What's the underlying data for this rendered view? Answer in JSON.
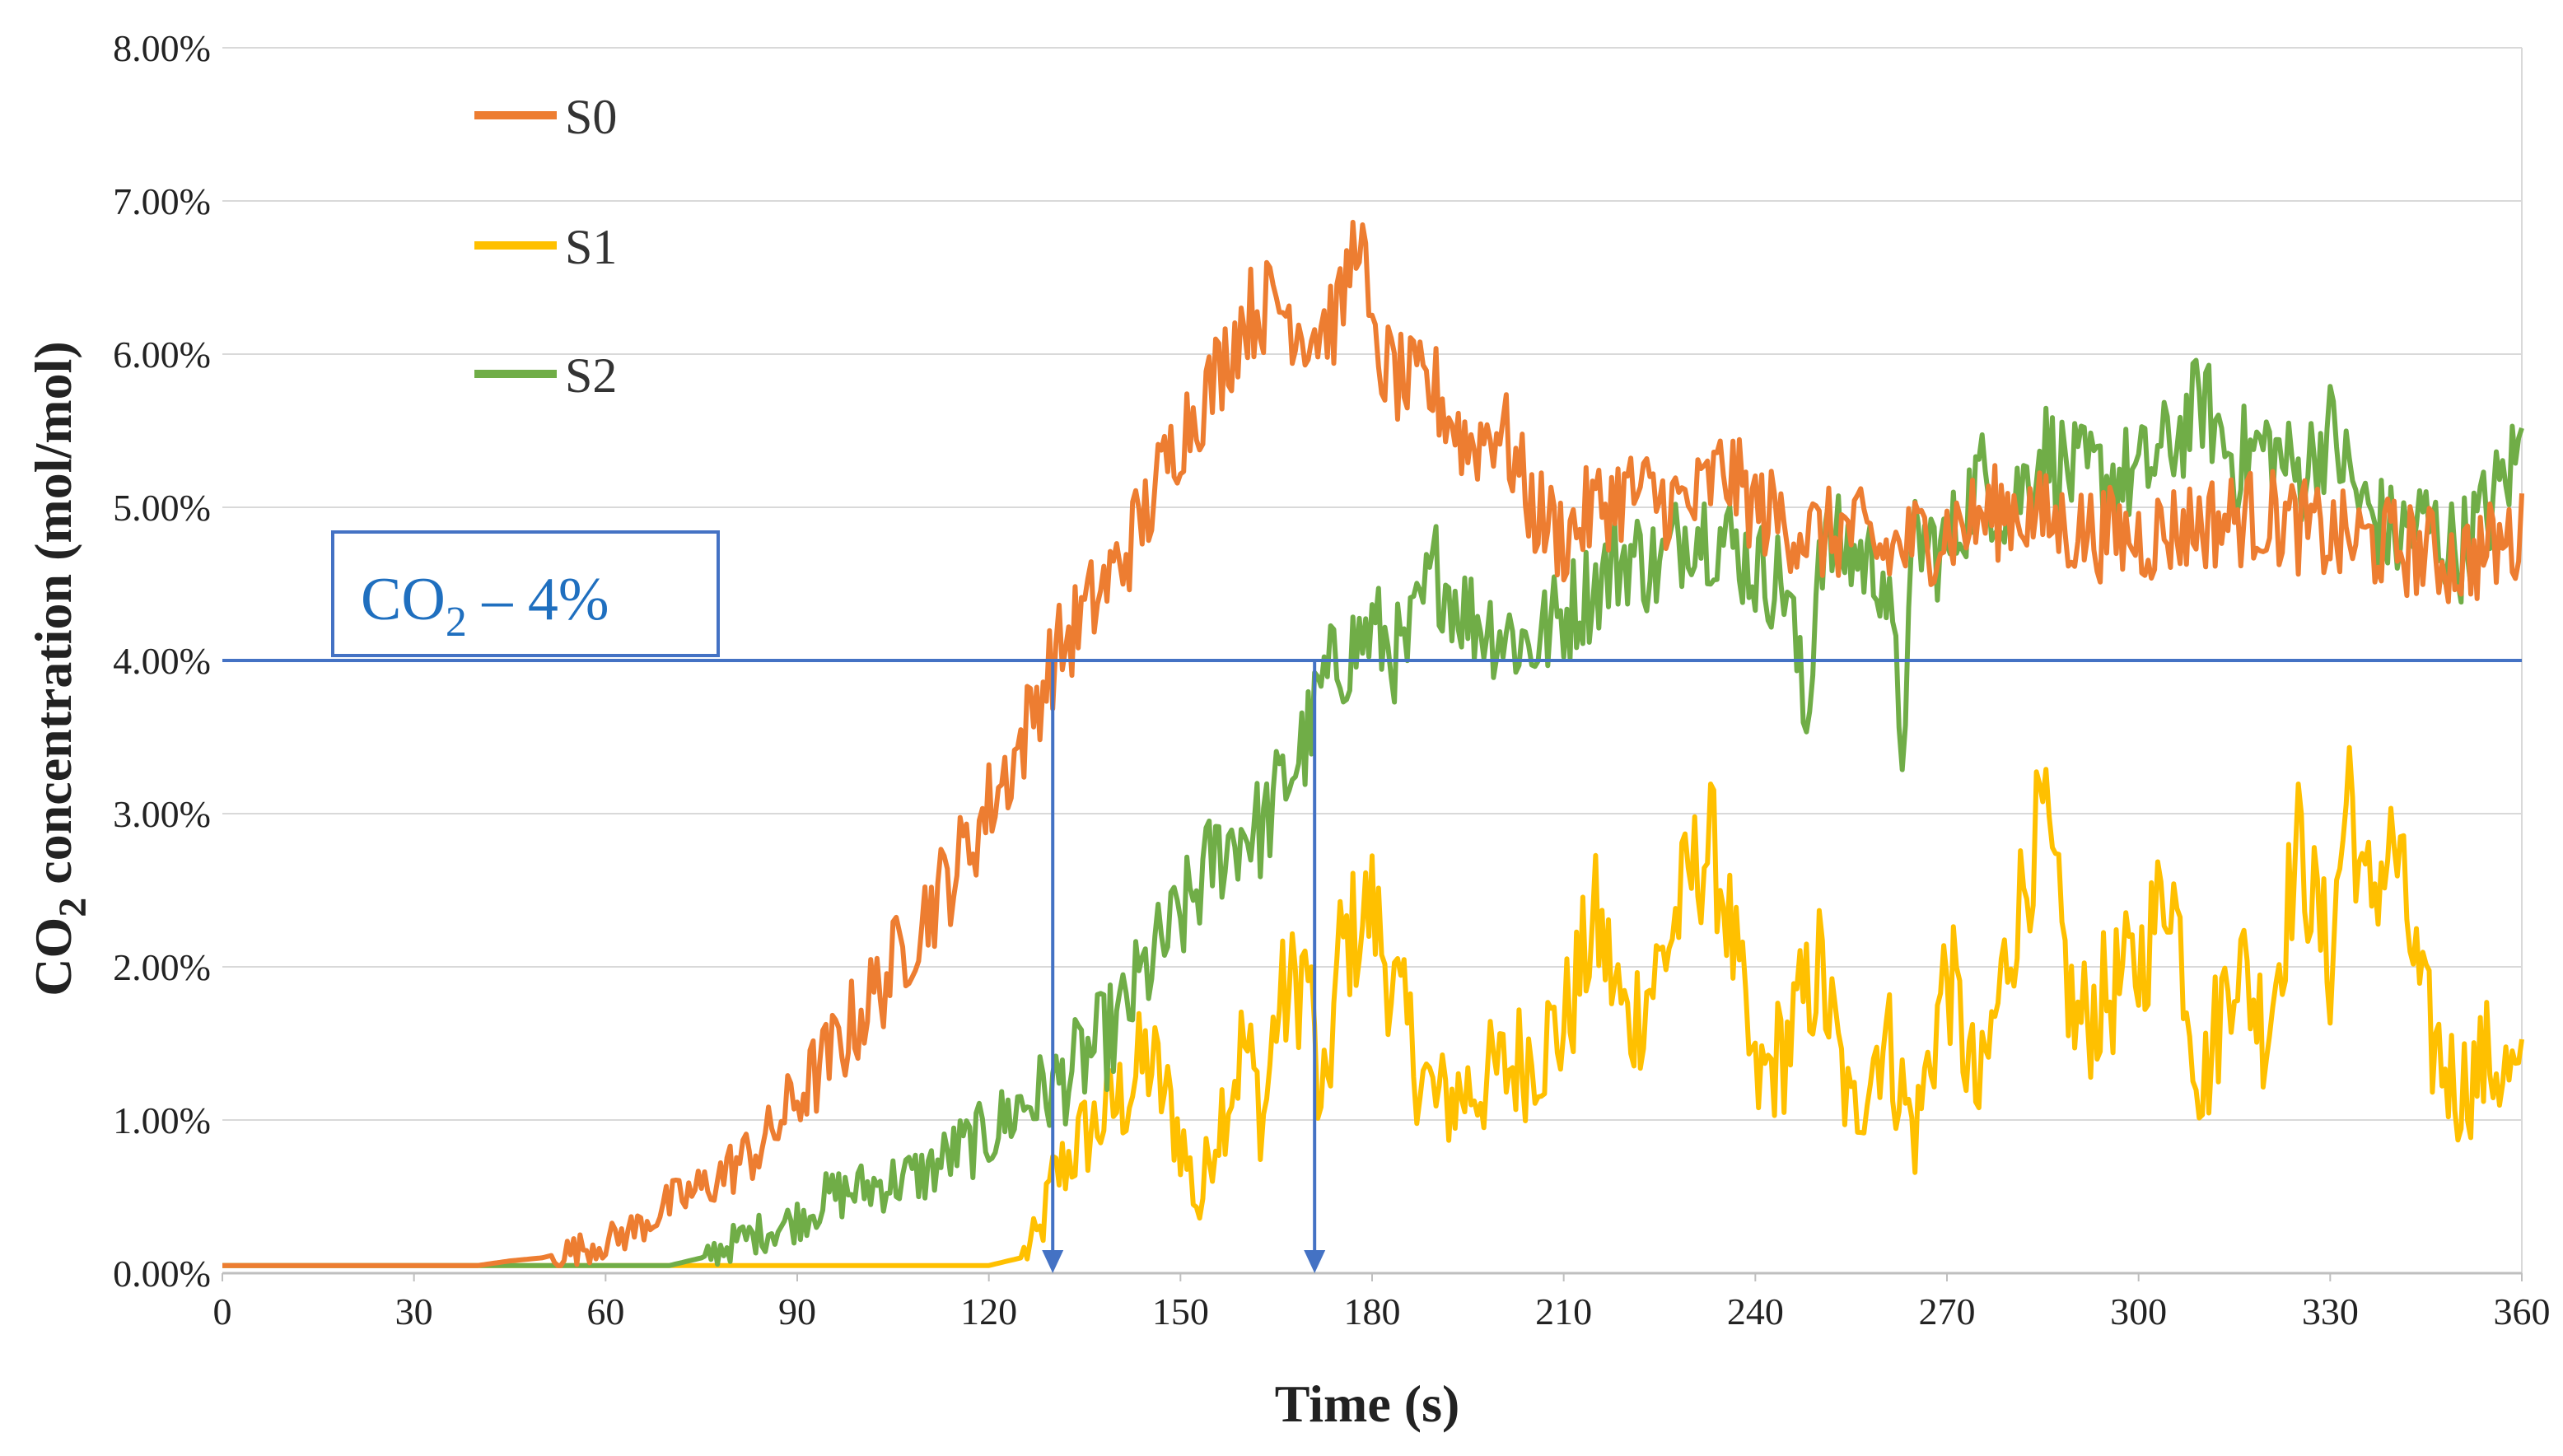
{
  "colors": {
    "S0": "#ed7d31",
    "S1": "#ffc000",
    "S2": "#70ad47",
    "threshold": "#4472c4",
    "annotation_text": "#1f6fbf",
    "grid": "#d9d9d9"
  },
  "chart_data": {
    "type": "line",
    "title": "",
    "xlabel": "Time (s)",
    "ylabel_main": "CO",
    "ylabel_sub": "2",
    "ylabel_rest": " concentration (mol/mol)",
    "xlim": [
      0,
      360
    ],
    "ylim": [
      0,
      0.08
    ],
    "x_ticks": [
      0,
      30,
      60,
      90,
      120,
      150,
      180,
      210,
      240,
      270,
      300,
      330,
      360
    ],
    "y_ticks": [
      0,
      0.01,
      0.02,
      0.03,
      0.04,
      0.05,
      0.06,
      0.07,
      0.08
    ],
    "y_tick_labels": [
      "0.00%",
      "1.00%",
      "2.00%",
      "3.00%",
      "4.00%",
      "5.00%",
      "6.00%",
      "7.00%",
      "8.00%"
    ],
    "grid": "horizontal",
    "legend_position": "top-left",
    "series": [
      {
        "name": "S0",
        "x": [
          0,
          30,
          40,
          45,
          50,
          55,
          60,
          65,
          70,
          75,
          80,
          85,
          90,
          95,
          100,
          105,
          110,
          115,
          120,
          125,
          128,
          130,
          135,
          140,
          145,
          150,
          155,
          160,
          165,
          170,
          175,
          178,
          180,
          185,
          190,
          195,
          200,
          205,
          210,
          215,
          220,
          225,
          230,
          235,
          240,
          245,
          250,
          255,
          260,
          270,
          280,
          290,
          300,
          310,
          320,
          330,
          340,
          350,
          360
        ],
        "y": [
          0.0005,
          0.0005,
          0.0005,
          0.0008,
          0.001,
          0.0015,
          0.002,
          0.003,
          0.0045,
          0.0055,
          0.007,
          0.0085,
          0.0115,
          0.014,
          0.017,
          0.02,
          0.0235,
          0.0265,
          0.0305,
          0.0345,
          0.038,
          0.04,
          0.043,
          0.046,
          0.05,
          0.055,
          0.058,
          0.0625,
          0.0635,
          0.0615,
          0.0625,
          0.069,
          0.06,
          0.058,
          0.0575,
          0.054,
          0.0555,
          0.05,
          0.048,
          0.05,
          0.051,
          0.0505,
          0.05,
          0.0525,
          0.05,
          0.049,
          0.048,
          0.0485,
          0.047,
          0.0485,
          0.05,
          0.0485,
          0.048,
          0.049,
          0.0495,
          0.048,
          0.0475,
          0.0465,
          0.048
        ]
      },
      {
        "name": "S1",
        "x": [
          0,
          120,
          125,
          128,
          130,
          135,
          140,
          145,
          150,
          153,
          155,
          160,
          163,
          165,
          170,
          172,
          175,
          180,
          185,
          190,
          200,
          210,
          215,
          220,
          225,
          230,
          233,
          235,
          240,
          245,
          250,
          255,
          260,
          265,
          270,
          275,
          280,
          285,
          290,
          300,
          305,
          310,
          315,
          320,
          325,
          330,
          333,
          335,
          340,
          345,
          350,
          355,
          360
        ],
        "y": [
          0.0005,
          0.0005,
          0.001,
          0.0025,
          0.006,
          0.009,
          0.011,
          0.014,
          0.009,
          0.004,
          0.009,
          0.015,
          0.01,
          0.017,
          0.02,
          0.009,
          0.021,
          0.024,
          0.016,
          0.011,
          0.013,
          0.016,
          0.023,
          0.016,
          0.02,
          0.026,
          0.028,
          0.025,
          0.012,
          0.015,
          0.02,
          0.01,
          0.016,
          0.009,
          0.02,
          0.011,
          0.022,
          0.03,
          0.016,
          0.02,
          0.026,
          0.012,
          0.021,
          0.016,
          0.028,
          0.02,
          0.033,
          0.024,
          0.028,
          0.016,
          0.012,
          0.014,
          0.012
        ]
      },
      {
        "name": "S2",
        "x": [
          0,
          70,
          75,
          80,
          90,
          95,
          100,
          110,
          115,
          120,
          125,
          130,
          135,
          140,
          145,
          150,
          155,
          160,
          163,
          165,
          170,
          172,
          175,
          180,
          185,
          190,
          195,
          200,
          205,
          210,
          215,
          220,
          225,
          230,
          235,
          240,
          245,
          248,
          250,
          255,
          260,
          263,
          265,
          270,
          275,
          280,
          285,
          290,
          300,
          305,
          310,
          315,
          320,
          325,
          330,
          335,
          340,
          345,
          350,
          355,
          360
        ],
        "y": [
          0.0005,
          0.0005,
          0.001,
          0.002,
          0.0035,
          0.005,
          0.0055,
          0.0065,
          0.008,
          0.009,
          0.011,
          0.012,
          0.014,
          0.016,
          0.02,
          0.023,
          0.027,
          0.029,
          0.029,
          0.031,
          0.035,
          0.038,
          0.04,
          0.042,
          0.04,
          0.046,
          0.043,
          0.042,
          0.041,
          0.043,
          0.045,
          0.047,
          0.046,
          0.049,
          0.048,
          0.046,
          0.045,
          0.035,
          0.048,
          0.047,
          0.046,
          0.035,
          0.048,
          0.047,
          0.052,
          0.05,
          0.054,
          0.052,
          0.052,
          0.054,
          0.057,
          0.053,
          0.054,
          0.052,
          0.055,
          0.05,
          0.048,
          0.049,
          0.047,
          0.05,
          0.054
        ]
      }
    ],
    "annotations": [
      {
        "type": "hline",
        "y": 0.04,
        "x_start": 0,
        "x_end": 360
      },
      {
        "type": "arrow",
        "x": 130,
        "y_from": 0.04,
        "y_to": 0
      },
      {
        "type": "arrow",
        "x": 171,
        "y_from": 0.04,
        "y_to": 0
      }
    ],
    "annotation_label": {
      "main": "CO",
      "sub": "2",
      "rest": " – 4%"
    }
  }
}
